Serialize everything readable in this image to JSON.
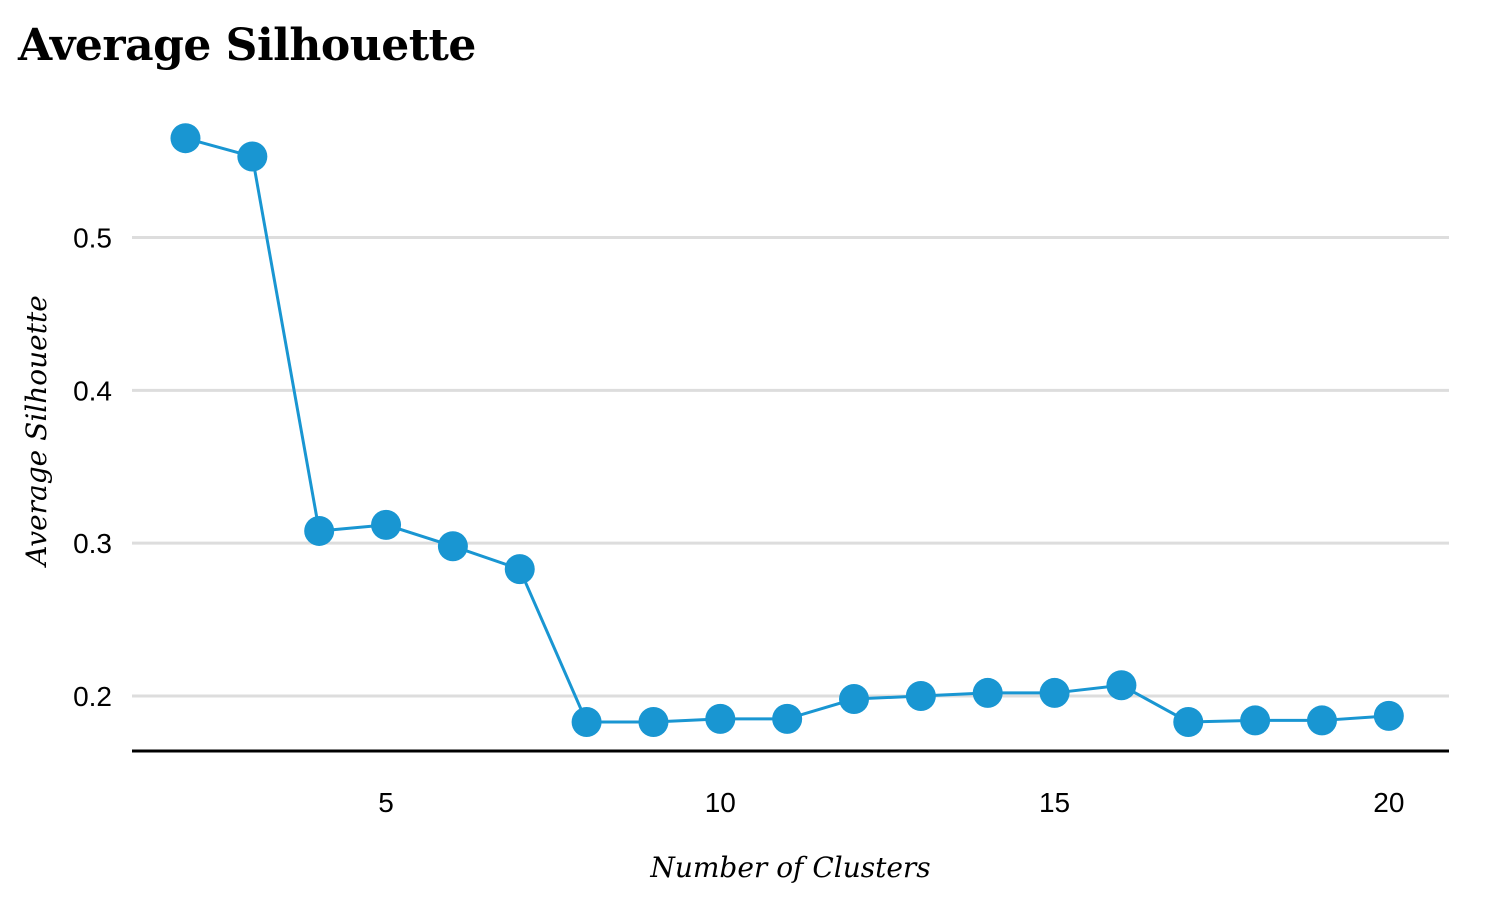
{
  "chart_data": {
    "type": "line",
    "title": "Average Silhouette",
    "xlabel": "Number of Clusters",
    "ylabel": "Average Silhouette",
    "x": [
      2,
      3,
      4,
      5,
      6,
      7,
      8,
      9,
      10,
      11,
      12,
      13,
      14,
      15,
      16,
      17,
      18,
      19,
      20
    ],
    "series": [
      {
        "values": [
          0.565,
          0.553,
          0.308,
          0.312,
          0.298,
          0.283,
          0.183,
          0.183,
          0.185,
          0.185,
          0.198,
          0.2,
          0.202,
          0.202,
          0.207,
          0.183,
          0.184,
          0.184,
          0.187
        ]
      }
    ],
    "xticks": [
      "5",
      "10",
      "15",
      "20"
    ],
    "yticks": [
      "0.2",
      "0.3",
      "0.4",
      "0.5"
    ],
    "xlim": [
      1.2,
      20.9
    ],
    "ylim": [
      0.164,
      0.59
    ],
    "grid": "horizontal",
    "line_color": "#1996d2",
    "grid_color": "#dddddd",
    "legend": "none"
  }
}
